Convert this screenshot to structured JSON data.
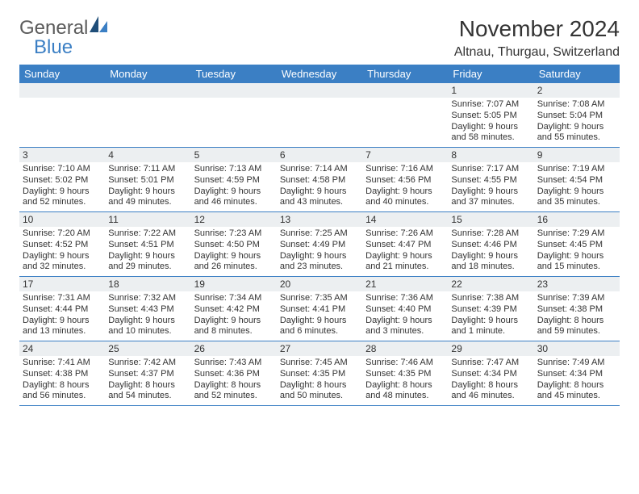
{
  "logo": {
    "text1": "General",
    "text2": "Blue"
  },
  "title": "November 2024",
  "location": "Altnau, Thurgau, Switzerland",
  "colors": {
    "header_bar": "#3b7fc4",
    "daynum_bg": "#eceff1",
    "rule": "#3b7fc4",
    "text": "#333333",
    "logo_gray": "#5b5b5b",
    "logo_blue": "#3b7fc4",
    "sail_dark": "#1f4e79",
    "sail_light": "#3b7fc4"
  },
  "weekdays": [
    "Sunday",
    "Monday",
    "Tuesday",
    "Wednesday",
    "Thursday",
    "Friday",
    "Saturday"
  ],
  "weeks": [
    [
      {
        "n": "",
        "sunrise": "",
        "sunset": "",
        "daylight": ""
      },
      {
        "n": "",
        "sunrise": "",
        "sunset": "",
        "daylight": ""
      },
      {
        "n": "",
        "sunrise": "",
        "sunset": "",
        "daylight": ""
      },
      {
        "n": "",
        "sunrise": "",
        "sunset": "",
        "daylight": ""
      },
      {
        "n": "",
        "sunrise": "",
        "sunset": "",
        "daylight": ""
      },
      {
        "n": "1",
        "sunrise": "Sunrise: 7:07 AM",
        "sunset": "Sunset: 5:05 PM",
        "daylight": "Daylight: 9 hours and 58 minutes."
      },
      {
        "n": "2",
        "sunrise": "Sunrise: 7:08 AM",
        "sunset": "Sunset: 5:04 PM",
        "daylight": "Daylight: 9 hours and 55 minutes."
      }
    ],
    [
      {
        "n": "3",
        "sunrise": "Sunrise: 7:10 AM",
        "sunset": "Sunset: 5:02 PM",
        "daylight": "Daylight: 9 hours and 52 minutes."
      },
      {
        "n": "4",
        "sunrise": "Sunrise: 7:11 AM",
        "sunset": "Sunset: 5:01 PM",
        "daylight": "Daylight: 9 hours and 49 minutes."
      },
      {
        "n": "5",
        "sunrise": "Sunrise: 7:13 AM",
        "sunset": "Sunset: 4:59 PM",
        "daylight": "Daylight: 9 hours and 46 minutes."
      },
      {
        "n": "6",
        "sunrise": "Sunrise: 7:14 AM",
        "sunset": "Sunset: 4:58 PM",
        "daylight": "Daylight: 9 hours and 43 minutes."
      },
      {
        "n": "7",
        "sunrise": "Sunrise: 7:16 AM",
        "sunset": "Sunset: 4:56 PM",
        "daylight": "Daylight: 9 hours and 40 minutes."
      },
      {
        "n": "8",
        "sunrise": "Sunrise: 7:17 AM",
        "sunset": "Sunset: 4:55 PM",
        "daylight": "Daylight: 9 hours and 37 minutes."
      },
      {
        "n": "9",
        "sunrise": "Sunrise: 7:19 AM",
        "sunset": "Sunset: 4:54 PM",
        "daylight": "Daylight: 9 hours and 35 minutes."
      }
    ],
    [
      {
        "n": "10",
        "sunrise": "Sunrise: 7:20 AM",
        "sunset": "Sunset: 4:52 PM",
        "daylight": "Daylight: 9 hours and 32 minutes."
      },
      {
        "n": "11",
        "sunrise": "Sunrise: 7:22 AM",
        "sunset": "Sunset: 4:51 PM",
        "daylight": "Daylight: 9 hours and 29 minutes."
      },
      {
        "n": "12",
        "sunrise": "Sunrise: 7:23 AM",
        "sunset": "Sunset: 4:50 PM",
        "daylight": "Daylight: 9 hours and 26 minutes."
      },
      {
        "n": "13",
        "sunrise": "Sunrise: 7:25 AM",
        "sunset": "Sunset: 4:49 PM",
        "daylight": "Daylight: 9 hours and 23 minutes."
      },
      {
        "n": "14",
        "sunrise": "Sunrise: 7:26 AM",
        "sunset": "Sunset: 4:47 PM",
        "daylight": "Daylight: 9 hours and 21 minutes."
      },
      {
        "n": "15",
        "sunrise": "Sunrise: 7:28 AM",
        "sunset": "Sunset: 4:46 PM",
        "daylight": "Daylight: 9 hours and 18 minutes."
      },
      {
        "n": "16",
        "sunrise": "Sunrise: 7:29 AM",
        "sunset": "Sunset: 4:45 PM",
        "daylight": "Daylight: 9 hours and 15 minutes."
      }
    ],
    [
      {
        "n": "17",
        "sunrise": "Sunrise: 7:31 AM",
        "sunset": "Sunset: 4:44 PM",
        "daylight": "Daylight: 9 hours and 13 minutes."
      },
      {
        "n": "18",
        "sunrise": "Sunrise: 7:32 AM",
        "sunset": "Sunset: 4:43 PM",
        "daylight": "Daylight: 9 hours and 10 minutes."
      },
      {
        "n": "19",
        "sunrise": "Sunrise: 7:34 AM",
        "sunset": "Sunset: 4:42 PM",
        "daylight": "Daylight: 9 hours and 8 minutes."
      },
      {
        "n": "20",
        "sunrise": "Sunrise: 7:35 AM",
        "sunset": "Sunset: 4:41 PM",
        "daylight": "Daylight: 9 hours and 6 minutes."
      },
      {
        "n": "21",
        "sunrise": "Sunrise: 7:36 AM",
        "sunset": "Sunset: 4:40 PM",
        "daylight": "Daylight: 9 hours and 3 minutes."
      },
      {
        "n": "22",
        "sunrise": "Sunrise: 7:38 AM",
        "sunset": "Sunset: 4:39 PM",
        "daylight": "Daylight: 9 hours and 1 minute."
      },
      {
        "n": "23",
        "sunrise": "Sunrise: 7:39 AM",
        "sunset": "Sunset: 4:38 PM",
        "daylight": "Daylight: 8 hours and 59 minutes."
      }
    ],
    [
      {
        "n": "24",
        "sunrise": "Sunrise: 7:41 AM",
        "sunset": "Sunset: 4:38 PM",
        "daylight": "Daylight: 8 hours and 56 minutes."
      },
      {
        "n": "25",
        "sunrise": "Sunrise: 7:42 AM",
        "sunset": "Sunset: 4:37 PM",
        "daylight": "Daylight: 8 hours and 54 minutes."
      },
      {
        "n": "26",
        "sunrise": "Sunrise: 7:43 AM",
        "sunset": "Sunset: 4:36 PM",
        "daylight": "Daylight: 8 hours and 52 minutes."
      },
      {
        "n": "27",
        "sunrise": "Sunrise: 7:45 AM",
        "sunset": "Sunset: 4:35 PM",
        "daylight": "Daylight: 8 hours and 50 minutes."
      },
      {
        "n": "28",
        "sunrise": "Sunrise: 7:46 AM",
        "sunset": "Sunset: 4:35 PM",
        "daylight": "Daylight: 8 hours and 48 minutes."
      },
      {
        "n": "29",
        "sunrise": "Sunrise: 7:47 AM",
        "sunset": "Sunset: 4:34 PM",
        "daylight": "Daylight: 8 hours and 46 minutes."
      },
      {
        "n": "30",
        "sunrise": "Sunrise: 7:49 AM",
        "sunset": "Sunset: 4:34 PM",
        "daylight": "Daylight: 8 hours and 45 minutes."
      }
    ]
  ]
}
